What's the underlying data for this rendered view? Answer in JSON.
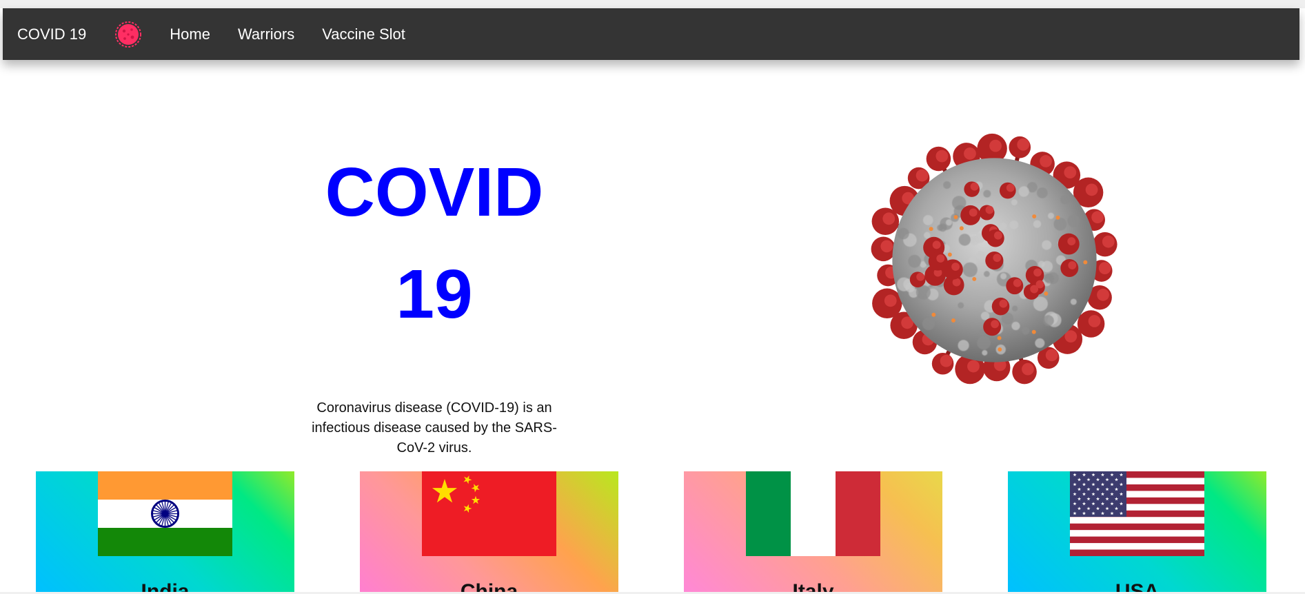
{
  "navbar": {
    "brand": "COVID 19",
    "logo_icon": "covid-virus-icon",
    "links": [
      "Home",
      "Warriors",
      "Vaccine Slot"
    ]
  },
  "hero": {
    "title_line1": "COVID",
    "title_line2": "19",
    "title_color": "#0000ff",
    "image": "coronavirus-illustration",
    "description": "Coronavirus disease (COVID-19) is an infectious disease caused by the SARS-CoV-2 virus."
  },
  "countries": [
    {
      "name": "India",
      "flag": "india-flag-icon"
    },
    {
      "name": "China",
      "flag": "china-flag-icon"
    },
    {
      "name": "Italy",
      "flag": "italy-flag-icon"
    },
    {
      "name": "USA",
      "flag": "usa-flag-icon"
    }
  ],
  "colors": {
    "navbar": "#343434",
    "virus_spike": "#b32424",
    "logo": "#ff2e63"
  }
}
